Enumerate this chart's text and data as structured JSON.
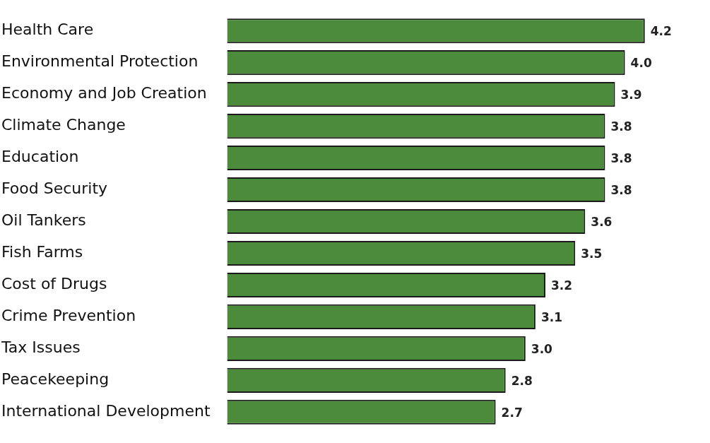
{
  "chart_data": {
    "type": "bar",
    "orientation": "horizontal",
    "categories": [
      "Health Care",
      "Environmental Protection",
      "Economy and Job Creation",
      "Climate Change",
      "Education",
      "Food Security",
      "Oil Tankers",
      "Fish Farms",
      "Cost of Drugs",
      "Crime Prevention",
      "Tax Issues",
      "Peacekeeping",
      "International Development"
    ],
    "values": [
      4.2,
      4.0,
      3.9,
      3.8,
      3.8,
      3.8,
      3.6,
      3.5,
      3.2,
      3.1,
      3.0,
      2.8,
      2.7
    ],
    "value_labels": [
      "4.2",
      "4.0",
      "3.9",
      "3.8",
      "3.8",
      "3.8",
      "3.6",
      "3.5",
      "3.2",
      "3.1",
      "3.0",
      "2.8",
      "2.7"
    ],
    "color": "#4b8b3b",
    "tick_labels": "y",
    "legend": false
  }
}
